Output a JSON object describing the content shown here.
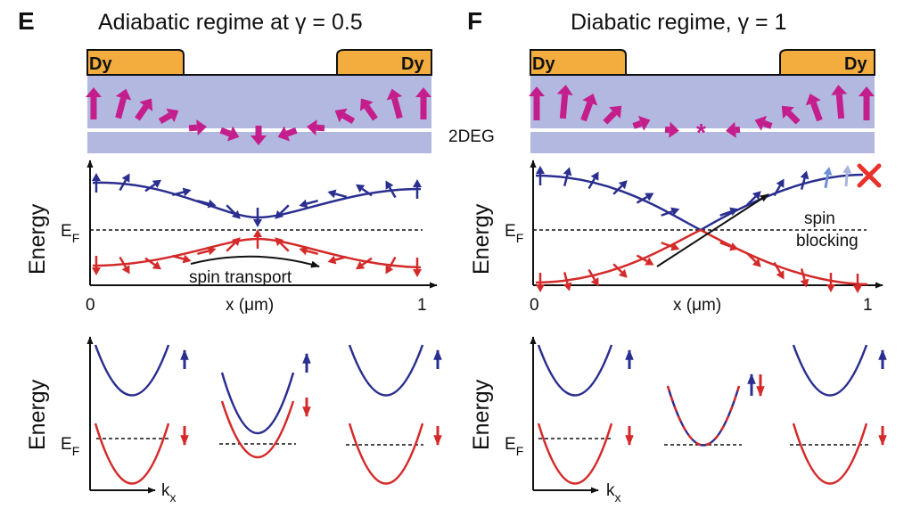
{
  "panels": [
    {
      "letter": "E",
      "title": "Adiabatic regime at γ = 0.5",
      "dy_left": "Dy",
      "dy_right": "Dy",
      "energy_label": "Energy",
      "fermi_label": "E",
      "fermi_sub": "F",
      "x_axis_label": "x (μm)",
      "x_tick_start": "0",
      "x_tick_end": "1",
      "annotation": "spin transport",
      "lower_energy_label": "Energy",
      "lower_fermi_label": "E",
      "lower_fermi_sub": "F",
      "kx_label": "k",
      "kx_sub": "x"
    },
    {
      "letter": "F",
      "title": "Diabatic regime, γ = 1",
      "dy_left": "Dy",
      "dy_right": "Dy",
      "energy_label": "Energy",
      "fermi_label": "E",
      "fermi_sub": "F",
      "x_axis_label": "x (μm)",
      "x_tick_start": "0",
      "x_tick_end": "1",
      "annotation_line1": "spin",
      "annotation_line2": "blocking",
      "lower_energy_label": "Energy",
      "lower_fermi_label": "E",
      "lower_fermi_sub": "F",
      "kx_label": "k",
      "kx_sub": "x"
    }
  ],
  "center_label": "2DEG",
  "colors": {
    "spin_up_band": "#2a2f8f",
    "spin_down_band": "#d42a2a",
    "magnet": "#f3ad3f",
    "twodeg": "#b3b8e0",
    "magnetization_arrow": "#c41e8c",
    "block_cross": "#e8322c"
  }
}
